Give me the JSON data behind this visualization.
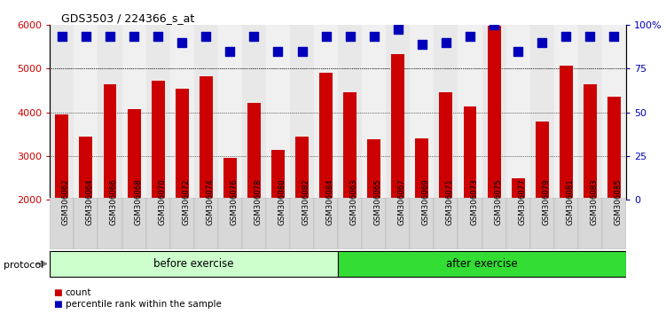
{
  "title": "GDS3503 / 224366_s_at",
  "samples": [
    "GSM306062",
    "GSM306064",
    "GSM306066",
    "GSM306068",
    "GSM306070",
    "GSM306072",
    "GSM306074",
    "GSM306076",
    "GSM306078",
    "GSM306080",
    "GSM306082",
    "GSM306084",
    "GSM306063",
    "GSM306065",
    "GSM306067",
    "GSM306069",
    "GSM306071",
    "GSM306073",
    "GSM306075",
    "GSM306077",
    "GSM306079",
    "GSM306081",
    "GSM306083",
    "GSM306085"
  ],
  "counts": [
    3950,
    3450,
    4650,
    4080,
    4720,
    4550,
    4820,
    2950,
    4220,
    3130,
    3450,
    4900,
    4460,
    3380,
    5340,
    3400,
    4460,
    4130,
    5980,
    2490,
    3790,
    5060,
    4650,
    4360
  ],
  "percentile_y": [
    5750,
    5750,
    5750,
    5750,
    5750,
    5600,
    5750,
    5400,
    5750,
    5400,
    5400,
    5750,
    5750,
    5750,
    5900,
    5550,
    5600,
    5750,
    6000,
    5400,
    5600,
    5750,
    5750,
    5750
  ],
  "n_before": 12,
  "n_after": 12,
  "bar_color": "#cc0000",
  "dot_color": "#0000bb",
  "ylim_left": [
    2000,
    6000
  ],
  "ylim_right": [
    0,
    100
  ],
  "yticks_left": [
    2000,
    3000,
    4000,
    5000,
    6000
  ],
  "yticks_right": [
    0,
    25,
    50,
    75,
    100
  ],
  "yticklabels_right": [
    "0",
    "25",
    "50",
    "75",
    "100%"
  ],
  "grid_values": [
    3000,
    4000,
    5000
  ],
  "before_color": "#ccffcc",
  "after_color": "#33dd33",
  "protocol_label": "protocol",
  "before_label": "before exercise",
  "after_label": "after exercise",
  "legend_count": "count",
  "legend_pct": "percentile rank within the sample",
  "bar_width": 0.55,
  "dot_size": 50
}
